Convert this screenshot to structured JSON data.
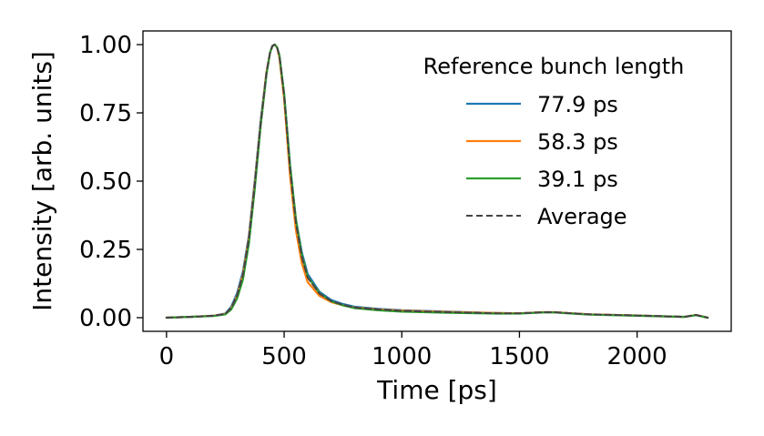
{
  "chart_data": {
    "type": "line",
    "xlabel": "Time [ps]",
    "ylabel": "Intensity [arb. units]",
    "xlim": [
      -100,
      2400
    ],
    "ylim": [
      -0.05,
      1.05
    ],
    "x_ticks": [
      0,
      500,
      1000,
      1500,
      2000
    ],
    "x_tick_labels": [
      "0",
      "500",
      "1000",
      "1500",
      "2000"
    ],
    "y_ticks": [
      0.0,
      0.25,
      0.5,
      0.75,
      1.0
    ],
    "y_tick_labels": [
      "0.00",
      "0.25",
      "0.50",
      "0.75",
      "1.00"
    ],
    "grid": false,
    "legend": {
      "title": "Reference bunch length",
      "placement": "top-right",
      "frame": false
    },
    "x": [
      0,
      100,
      200,
      250,
      275,
      300,
      325,
      350,
      375,
      400,
      425,
      440,
      450,
      460,
      470,
      480,
      500,
      525,
      550,
      575,
      600,
      650,
      700,
      750,
      800,
      900,
      1000,
      1200,
      1400,
      1500,
      1600,
      1650,
      1700,
      1800,
      2000,
      2200,
      2250,
      2300
    ],
    "series": [
      {
        "name": "77.9 ps",
        "color": "#1f77b4",
        "style": "solid",
        "values": [
          0.0,
          0.003,
          0.007,
          0.015,
          0.04,
          0.09,
          0.17,
          0.3,
          0.5,
          0.72,
          0.9,
          0.97,
          0.995,
          1.0,
          0.99,
          0.96,
          0.82,
          0.56,
          0.36,
          0.24,
          0.16,
          0.095,
          0.065,
          0.05,
          0.04,
          0.032,
          0.027,
          0.022,
          0.017,
          0.016,
          0.02,
          0.02,
          0.017,
          0.012,
          0.008,
          0.003,
          0.01,
          0.0
        ]
      },
      {
        "name": "58.3 ps",
        "color": "#ff7f0e",
        "style": "solid",
        "values": [
          0.0,
          0.003,
          0.007,
          0.014,
          0.035,
          0.08,
          0.16,
          0.29,
          0.49,
          0.71,
          0.9,
          0.97,
          0.995,
          1.0,
          0.99,
          0.95,
          0.8,
          0.52,
          0.32,
          0.2,
          0.13,
          0.08,
          0.057,
          0.045,
          0.037,
          0.03,
          0.026,
          0.021,
          0.017,
          0.016,
          0.02,
          0.02,
          0.017,
          0.012,
          0.008,
          0.003,
          0.01,
          0.0
        ]
      },
      {
        "name": "39.1 ps",
        "color": "#2ca02c",
        "style": "solid",
        "values": [
          0.0,
          0.003,
          0.006,
          0.012,
          0.03,
          0.07,
          0.14,
          0.27,
          0.47,
          0.7,
          0.89,
          0.97,
          0.995,
          1.0,
          0.99,
          0.96,
          0.82,
          0.56,
          0.36,
          0.23,
          0.15,
          0.09,
          0.06,
          0.045,
          0.035,
          0.027,
          0.022,
          0.018,
          0.015,
          0.015,
          0.019,
          0.019,
          0.016,
          0.011,
          0.007,
          0.003,
          0.009,
          0.0
        ]
      },
      {
        "name": "Average",
        "color": "#444444",
        "style": "dashed",
        "values": [
          0.0,
          0.003,
          0.007,
          0.014,
          0.035,
          0.08,
          0.157,
          0.287,
          0.487,
          0.71,
          0.897,
          0.97,
          0.995,
          1.0,
          0.99,
          0.957,
          0.813,
          0.547,
          0.347,
          0.223,
          0.147,
          0.088,
          0.061,
          0.047,
          0.037,
          0.03,
          0.025,
          0.02,
          0.016,
          0.016,
          0.02,
          0.02,
          0.017,
          0.012,
          0.008,
          0.003,
          0.01,
          0.0
        ]
      }
    ]
  }
}
